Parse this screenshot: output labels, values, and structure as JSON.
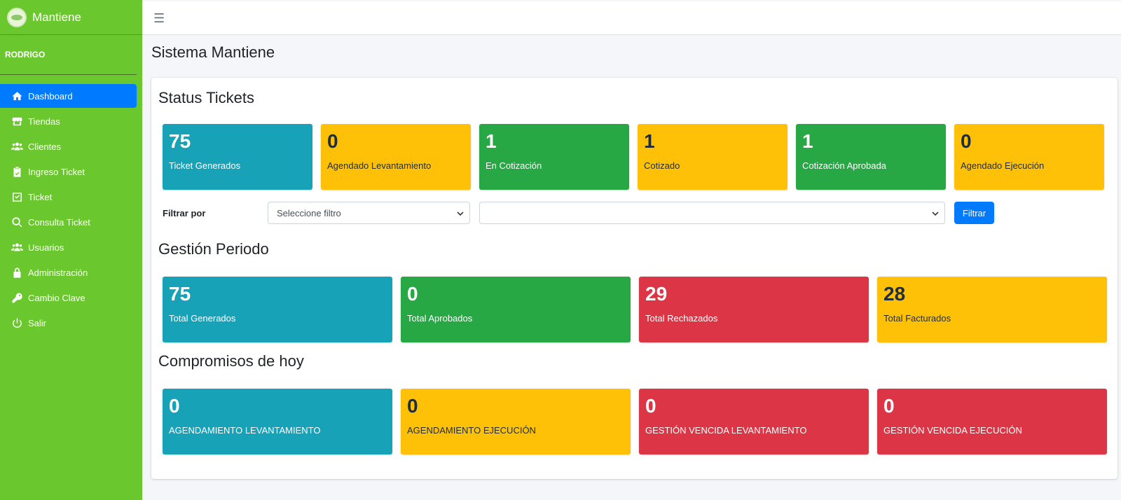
{
  "brand": {
    "name": "Mantiene"
  },
  "user": {
    "name": "RODRIGO"
  },
  "sidebar": {
    "items": [
      {
        "label": "Dashboard",
        "icon": "home-icon"
      },
      {
        "label": "Tiendas",
        "icon": "store-icon"
      },
      {
        "label": "Clientes",
        "icon": "users-icon"
      },
      {
        "label": "Ingreso Ticket",
        "icon": "clipboard-check-icon"
      },
      {
        "label": "Ticket",
        "icon": "check-square-icon"
      },
      {
        "label": "Consulta Ticket",
        "icon": "search-icon"
      },
      {
        "label": "Usuarios",
        "icon": "users-icon"
      },
      {
        "label": "Administración",
        "icon": "lock-icon"
      },
      {
        "label": "Cambio Clave",
        "icon": "key-icon"
      },
      {
        "label": "Salir",
        "icon": "power-icon"
      }
    ],
    "active_index": 0
  },
  "page": {
    "title": "Sistema Mantiene"
  },
  "status_tickets": {
    "title": "Status Tickets",
    "boxes": [
      {
        "value": "75",
        "label": "Ticket Generados",
        "color": "#17a2b8"
      },
      {
        "value": "0",
        "label": "Agendado Levantamiento",
        "color": "#ffc107"
      },
      {
        "value": "1",
        "label": "En Cotización",
        "color": "#28a745"
      },
      {
        "value": "1",
        "label": "Cotizado",
        "color": "#ffc107"
      },
      {
        "value": "1",
        "label": "Cotización Aprobada",
        "color": "#28a745"
      },
      {
        "value": "0",
        "label": "Agendado Ejecución",
        "color": "#ffc107"
      }
    ]
  },
  "filter": {
    "label": "Filtrar por",
    "select1_value": "Seleccione filtro",
    "select2_value": "",
    "button_label": "Filtrar"
  },
  "gestion_periodo": {
    "title": "Gestión Periodo",
    "boxes": [
      {
        "value": "75",
        "label": "Total Generados",
        "color": "#17a2b8"
      },
      {
        "value": "0",
        "label": "Total Aprobados",
        "color": "#28a745"
      },
      {
        "value": "29",
        "label": "Total Rechazados",
        "color": "#dc3545"
      },
      {
        "value": "28",
        "label": "Total Facturados",
        "color": "#ffc107"
      }
    ]
  },
  "compromisos": {
    "title": "Compromisos de hoy",
    "boxes": [
      {
        "value": "0",
        "label": "AGENDAMIENTO LEVANTAMIENTO",
        "color": "#17a2b8"
      },
      {
        "value": "0",
        "label": "AGENDAMIENTO EJECUCIÓN",
        "color": "#ffc107"
      },
      {
        "value": "0",
        "label": "GESTIÓN VENCIDA LEVANTAMIENTO",
        "color": "#dc3545"
      },
      {
        "value": "0",
        "label": "GESTIÓN VENCIDA EJECUCIÓN",
        "color": "#dc3545"
      }
    ]
  }
}
